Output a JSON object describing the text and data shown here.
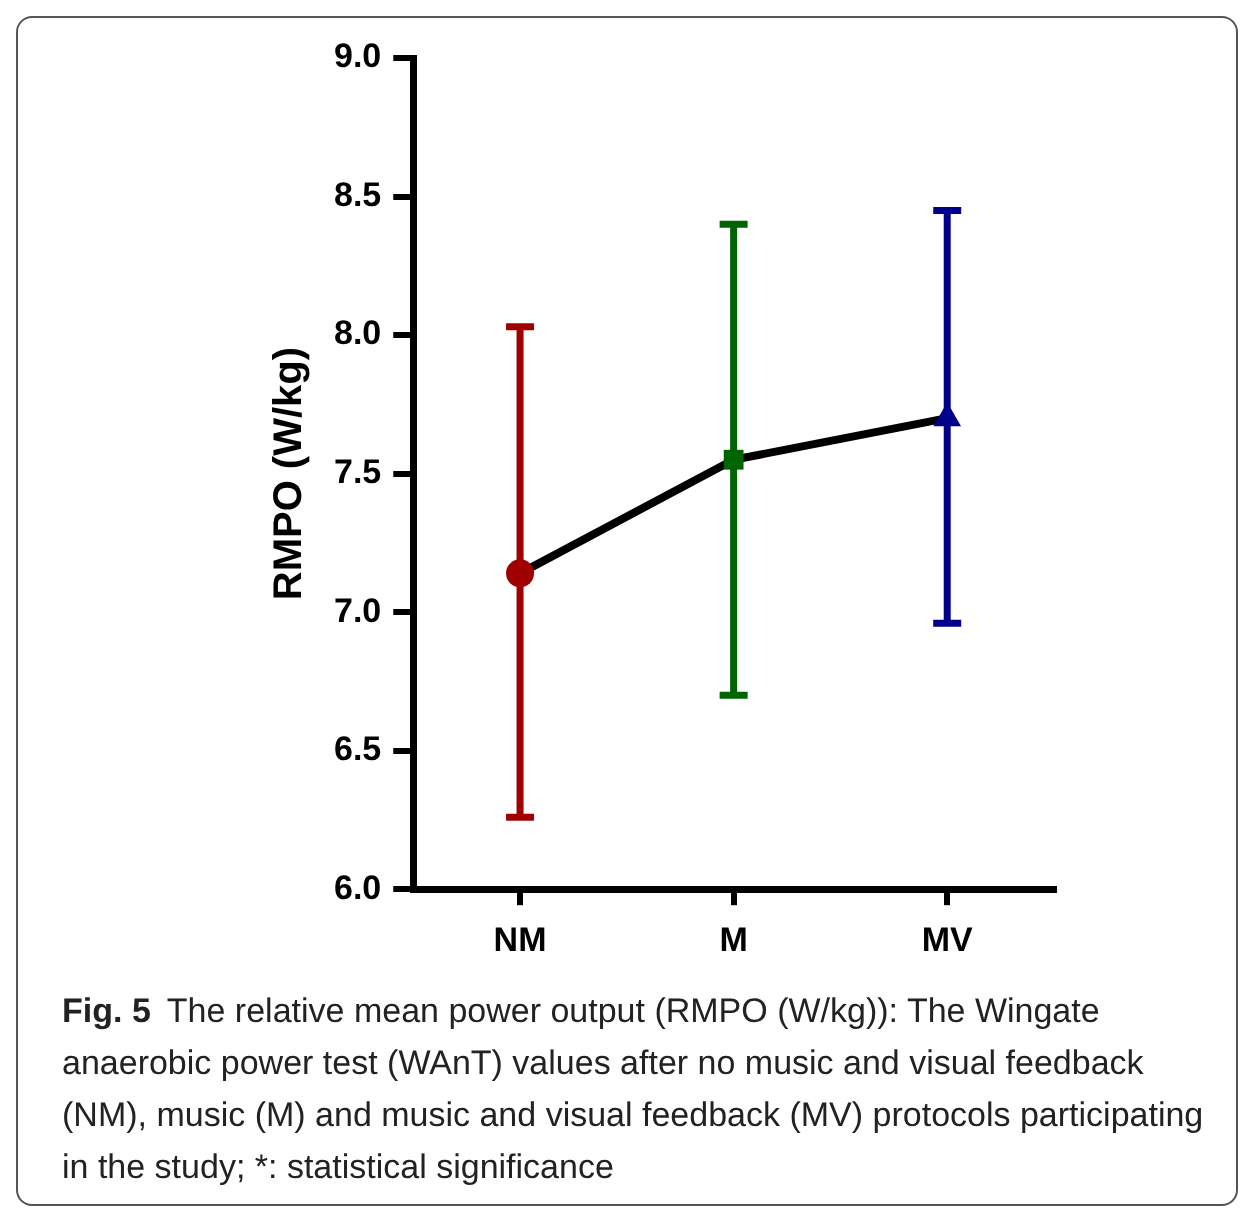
{
  "chart_data": {
    "type": "line",
    "ylabel": "RMPO (W/kg)",
    "categories": [
      "NM",
      "M",
      "MV"
    ],
    "ylim": [
      6.0,
      9.0
    ],
    "yticks": [
      {
        "value": 6,
        "label": "6.0"
      },
      {
        "value": 6.5,
        "label": "6.5"
      },
      {
        "value": 7,
        "label": "7.0"
      },
      {
        "value": 7.5,
        "label": "7.5"
      },
      {
        "value": 8,
        "label": "8.0"
      },
      {
        "value": 8.5,
        "label": "8.5"
      },
      {
        "value": 9,
        "label": "9.0"
      }
    ],
    "grid": false,
    "legend": false,
    "series": [
      {
        "color": "#000000",
        "marker": "none",
        "values": [
          7.14,
          7.55,
          7.7
        ]
      },
      {
        "type": "scatter",
        "x": [
          "NM"
        ],
        "values": [
          7.14
        ],
        "errors": [
          [
            6.26,
            8.03
          ]
        ],
        "color": "#a00000",
        "marker": "circle"
      },
      {
        "type": "scatter",
        "x": [
          "M"
        ],
        "values": [
          7.55
        ],
        "errors": [
          [
            6.7,
            8.4
          ]
        ],
        "color": "#006400",
        "marker": "square"
      },
      {
        "type": "scatter",
        "x": [
          "MV"
        ],
        "values": [
          7.7
        ],
        "errors": [
          [
            6.96,
            8.45
          ]
        ],
        "color": "#00008b",
        "marker": "triangle"
      }
    ],
    "annotations": [
      "Fig. 5",
      "The relative mean power output (RMPO (W/kg)): The Wingate anaerobic power test (WAnT) values after no music and visual feedback (NM), music (M) and music and visual feedback (MV) protocols participating in the study; *: statistical significance"
    ]
  }
}
